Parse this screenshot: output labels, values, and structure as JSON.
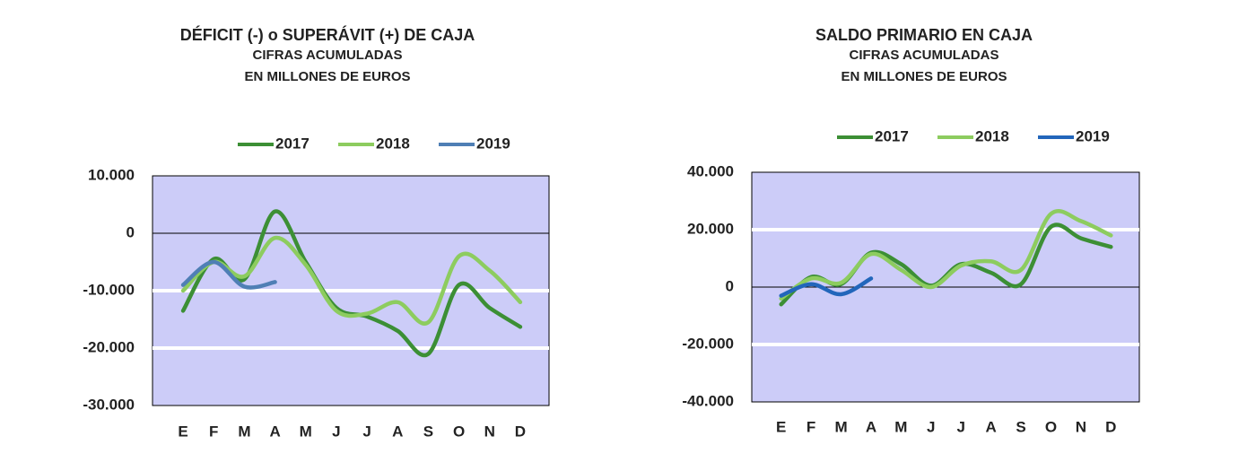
{
  "chart_data": [
    {
      "type": "line",
      "title": "DÉFICIT (-) o SUPERÁVIT (+) DE CAJA",
      "subtitle": [
        "CIFRAS ACUMULADAS",
        "EN MILLONES DE EUROS"
      ],
      "categories": [
        "E",
        "F",
        "M",
        "A",
        "M",
        "J",
        "J",
        "A",
        "S",
        "O",
        "N",
        "D"
      ],
      "series": [
        {
          "name": "2017",
          "color": "#3c8f35",
          "values": [
            -13500,
            -4500,
            -8000,
            3800,
            -5000,
            -13000,
            -14500,
            -17000,
            -21000,
            -9000,
            -13000,
            -16300
          ]
        },
        {
          "name": "2018",
          "color": "#8dcc5f",
          "values": [
            -10000,
            -5000,
            -7500,
            -800,
            -5500,
            -13500,
            -14000,
            -12000,
            -15500,
            -4000,
            -6500,
            -12000
          ]
        },
        {
          "name": "2019",
          "color": "#4f7fb5",
          "values": [
            -9000,
            -5000,
            -9300,
            -8500,
            null,
            null,
            null,
            null,
            null,
            null,
            null,
            null
          ]
        }
      ],
      "ylim": [
        -30000,
        10000
      ],
      "yticks": [
        {
          "value": 10000,
          "label": "10.000"
        },
        0,
        {
          "value": -10000,
          "label": "-10.000"
        },
        {
          "value": -20000,
          "label": "-20.000"
        },
        {
          "value": -30000,
          "label": "-30.000"
        }
      ],
      "grid": true,
      "legend": "top",
      "plot_background": "#ccccf8"
    },
    {
      "type": "line",
      "title": "SALDO PRIMARIO EN CAJA",
      "subtitle": [
        "CIFRAS ACUMULADAS",
        "EN MILLONES DE EUROS"
      ],
      "categories": [
        "E",
        "F",
        "M",
        "A",
        "M",
        "J",
        "J",
        "A",
        "S",
        "O",
        "N",
        "D"
      ],
      "series": [
        {
          "name": "2017",
          "color": "#3c8f35",
          "values": [
            -6000,
            3500,
            1000,
            12000,
            8000,
            500,
            8000,
            5000,
            1000,
            21000,
            17000,
            14000
          ]
        },
        {
          "name": "2018",
          "color": "#8dcc5f",
          "values": [
            -4000,
            3000,
            1500,
            11500,
            6000,
            0,
            7500,
            9000,
            6000,
            25500,
            23000,
            18000
          ]
        },
        {
          "name": "2019",
          "color": "#2266bb",
          "values": [
            -3000,
            1000,
            -2500,
            3000,
            null,
            null,
            null,
            null,
            null,
            null,
            null,
            null
          ]
        }
      ],
      "ylim": [
        -40000,
        40000
      ],
      "yticks": [
        {
          "value": 40000,
          "label": "40.000"
        },
        {
          "value": 20000,
          "label": "20.000"
        },
        0,
        {
          "value": -20000,
          "label": "-20.000"
        },
        {
          "value": -40000,
          "label": "-40.000"
        }
      ],
      "grid": true,
      "legend": "top",
      "plot_background": "#ccccf8"
    }
  ]
}
